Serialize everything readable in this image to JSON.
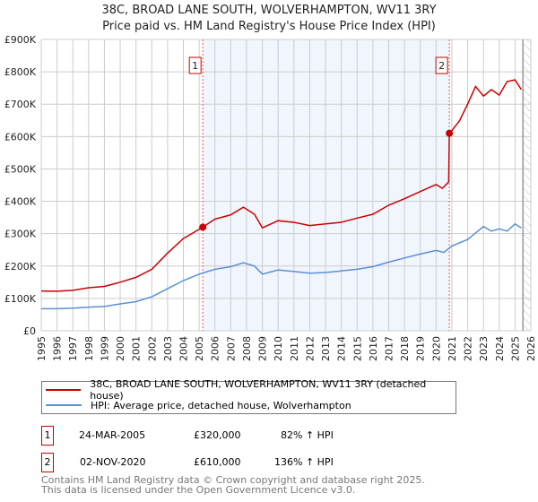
{
  "chart_data": {
    "type": "line",
    "title": "38C, BROAD LANE SOUTH, WOLVERHAMPTON, WV11 3RY",
    "subtitle": "Price paid vs. HM Land Registry's House Price Index (HPI)",
    "xlim": [
      1995,
      2026
    ],
    "ylim": [
      0,
      900000
    ],
    "y_ticks": [
      0,
      100000,
      200000,
      300000,
      400000,
      500000,
      600000,
      700000,
      800000,
      900000
    ],
    "y_tick_labels": [
      "£0",
      "£100K",
      "£200K",
      "£300K",
      "£400K",
      "£500K",
      "£600K",
      "£700K",
      "£800K",
      "£900K"
    ],
    "x_ticks": [
      1995,
      1996,
      1997,
      1998,
      1999,
      2000,
      2001,
      2002,
      2003,
      2004,
      2005,
      2006,
      2007,
      2008,
      2009,
      2010,
      2011,
      2012,
      2013,
      2014,
      2015,
      2016,
      2017,
      2018,
      2019,
      2020,
      2021,
      2022,
      2023,
      2024,
      2025,
      2026
    ],
    "grid": true,
    "shaded_range": [
      2005.23,
      2020.84
    ],
    "hatched_from": 2025.5,
    "series": [
      {
        "name": "38C, BROAD LANE SOUTH, WOLVERHAMPTON, WV11 3RY (detached house)",
        "color": "#cc0000",
        "x": [
          1995,
          1996,
          1997,
          1998,
          1999,
          2000,
          2001,
          2002,
          2003,
          2004,
          2005.23,
          2006,
          2007,
          2007.8,
          2008.5,
          2009,
          2010,
          2011,
          2012,
          2013,
          2014,
          2015,
          2016,
          2017,
          2018,
          2019,
          2020,
          2020.4,
          2020.8,
          2020.84,
          2021,
          2021.5,
          2022,
          2022.5,
          2023,
          2023.5,
          2024,
          2024.5,
          2025,
          2025.4
        ],
        "y": [
          123000,
          122000,
          125000,
          133000,
          137000,
          150000,
          165000,
          190000,
          240000,
          285000,
          320000,
          345000,
          358000,
          382000,
          360000,
          318000,
          340000,
          335000,
          325000,
          330000,
          335000,
          348000,
          360000,
          388000,
          408000,
          430000,
          452000,
          440000,
          460000,
          610000,
          618000,
          650000,
          700000,
          755000,
          725000,
          745000,
          728000,
          770000,
          775000,
          745000
        ]
      },
      {
        "name": "HPI: Average price, detached house, Wolverhampton",
        "color": "#5b8fd4",
        "x": [
          1995,
          1996,
          1997,
          1998,
          1999,
          2000,
          2001,
          2002,
          2003,
          2004,
          2005,
          2006,
          2007,
          2007.8,
          2008.5,
          2009,
          2010,
          2011,
          2012,
          2013,
          2014,
          2015,
          2016,
          2017,
          2018,
          2019,
          2020,
          2020.5,
          2021,
          2022,
          2022.5,
          2023,
          2023.5,
          2024,
          2024.5,
          2025,
          2025.4
        ],
        "y": [
          68000,
          68000,
          70000,
          73000,
          75000,
          83000,
          90000,
          105000,
          130000,
          155000,
          175000,
          190000,
          198000,
          210000,
          200000,
          175000,
          188000,
          183000,
          178000,
          180000,
          185000,
          190000,
          198000,
          212000,
          225000,
          237000,
          248000,
          242000,
          262000,
          282000,
          302000,
          322000,
          308000,
          315000,
          308000,
          330000,
          318000
        ]
      }
    ],
    "annotations": [
      {
        "label": "1",
        "x": 2005.23,
        "y": 320000
      },
      {
        "label": "2",
        "x": 2020.84,
        "y": 610000
      }
    ],
    "legend_placement": "bottom"
  },
  "legend": {
    "items": [
      "38C, BROAD LANE SOUTH, WOLVERHAMPTON, WV11 3RY (detached house)",
      "HPI: Average price, detached house, Wolverhampton"
    ]
  },
  "transactions": [
    {
      "num": "1",
      "date": "24-MAR-2005",
      "price": "£320,000",
      "hpi": "82% ↑ HPI"
    },
    {
      "num": "2",
      "date": "02-NOV-2020",
      "price": "£610,000",
      "hpi": "136% ↑ HPI"
    }
  ],
  "footer": {
    "line1": "Contains HM Land Registry data © Crown copyright and database right 2025.",
    "line2": "This data is licensed under the Open Government Licence v3.0."
  }
}
